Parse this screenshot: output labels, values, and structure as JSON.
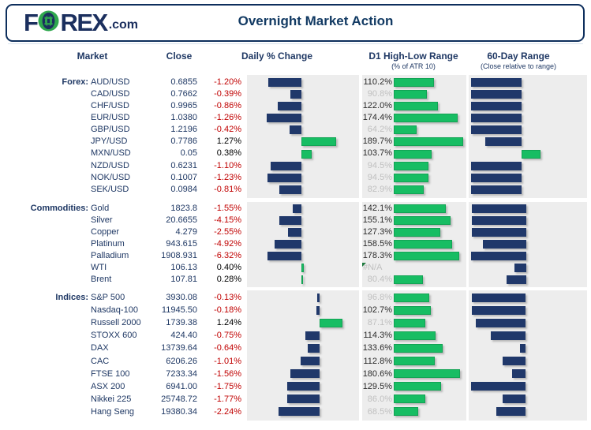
{
  "header": {
    "logo_f": "F",
    "logo_rex": "REX",
    "logo_suffix": ".com",
    "title": "Overnight Market Action"
  },
  "columns": {
    "market": "Market",
    "close": "Close",
    "daily": "Daily % Change",
    "d1_range": "D1 High-Low Range",
    "d1_range_sub": "(% of ATR 10)",
    "sixty_day": "60-Day Range",
    "sixty_day_sub": "(Close relative to range)"
  },
  "colors": {
    "navy_bar": "#20386a",
    "green_bar": "#17bd63",
    "negative_text": "#c00000",
    "positive_text": "#000000",
    "heading_text": "#1f3864",
    "dim_label": "#c0c0c0",
    "panel_bg": "#ededed"
  },
  "chart_data": {
    "type": "table",
    "title": "Overnight Market Action",
    "legend_note": "bars: navy = negative/below, green = positive; D1 range bars sized as % of ATR 10; 60-day bars show close position relative to range",
    "sections": [
      {
        "id": "forex",
        "label": "Forex:",
        "rows": [
          {
            "market": "AUD/USD",
            "close": "0.6855",
            "daily_pct": -1.2,
            "atr_pct": 110.2,
            "sixty_day": -0.427
          },
          {
            "market": "CAD/USD",
            "close": "0.7662",
            "daily_pct": -0.39,
            "atr_pct": 90.8,
            "sixty_day": -0.427
          },
          {
            "market": "CHF/USD",
            "close": "0.9965",
            "daily_pct": -0.86,
            "atr_pct": 122.0,
            "sixty_day": -0.427
          },
          {
            "market": "EUR/USD",
            "close": "1.0380",
            "daily_pct": -1.26,
            "atr_pct": 174.4,
            "sixty_day": -0.427
          },
          {
            "market": "GBP/USD",
            "close": "1.2196",
            "daily_pct": -0.42,
            "atr_pct": 64.2,
            "sixty_day": -0.427
          },
          {
            "market": "JPY/USD",
            "close": "0.7786",
            "daily_pct": 1.27,
            "atr_pct": 189.7,
            "sixty_day": -0.307
          },
          {
            "market": "MXN/USD",
            "close": "0.05",
            "daily_pct": 0.38,
            "atr_pct": 103.7,
            "sixty_day": 0.16
          },
          {
            "market": "NZD/USD",
            "close": "0.6231",
            "daily_pct": -1.1,
            "atr_pct": 94.5,
            "sixty_day": -0.427
          },
          {
            "market": "NOK/USD",
            "close": "0.1007",
            "daily_pct": -1.23,
            "atr_pct": 94.5,
            "sixty_day": -0.427
          },
          {
            "market": "SEK/USD",
            "close": "0.0984",
            "daily_pct": -0.81,
            "atr_pct": 82.9,
            "sixty_day": -0.427
          }
        ]
      },
      {
        "id": "commodities",
        "label": "Commodities:",
        "rows": [
          {
            "market": "Gold",
            "close": "1823.8",
            "daily_pct": -1.55,
            "atr_pct": 142.1,
            "sixty_day": -0.46
          },
          {
            "market": "Silver",
            "close": "20.6655",
            "daily_pct": -4.15,
            "atr_pct": 155.1,
            "sixty_day": -0.46
          },
          {
            "market": "Copper",
            "close": "4.279",
            "daily_pct": -2.55,
            "atr_pct": 127.3,
            "sixty_day": -0.46
          },
          {
            "market": "Platinum",
            "close": "943.615",
            "daily_pct": -4.92,
            "atr_pct": 158.5,
            "sixty_day": -0.363
          },
          {
            "market": "Palladium",
            "close": "1908.931",
            "daily_pct": -6.32,
            "atr_pct": 178.3,
            "sixty_day": -0.467
          },
          {
            "market": "WTI",
            "close": "106.13",
            "daily_pct": 0.4,
            "atr_pct": null,
            "atr_na_label": "#N/A",
            "atr_error_marker": true,
            "sixty_day": -0.1
          },
          {
            "market": "Brent",
            "close": "107.81",
            "daily_pct": 0.28,
            "atr_pct": 80.4,
            "sixty_day": -0.167
          }
        ]
      },
      {
        "id": "indices",
        "label": "Indices:",
        "rows": [
          {
            "market": "S&P 500",
            "close": "3930.08",
            "daily_pct": -0.13,
            "atr_pct": 96.8,
            "sixty_day": -0.455
          },
          {
            "market": "Nasdaq-100",
            "close": "11945.50",
            "daily_pct": -0.18,
            "atr_pct": 102.7,
            "sixty_day": -0.455
          },
          {
            "market": "Russell 2000",
            "close": "1739.38",
            "daily_pct": 1.24,
            "atr_pct": 87.1,
            "sixty_day": -0.418
          },
          {
            "market": "STOXX 600",
            "close": "424.40",
            "daily_pct": -0.75,
            "atr_pct": 114.3,
            "sixty_day": -0.291
          },
          {
            "market": "DAX",
            "close": "13739.64",
            "daily_pct": -0.64,
            "atr_pct": 133.6,
            "sixty_day": -0.045
          },
          {
            "market": "CAC",
            "close": "6206.26",
            "daily_pct": -1.01,
            "atr_pct": 112.8,
            "sixty_day": -0.191
          },
          {
            "market": "FTSE 100",
            "close": "7233.34",
            "daily_pct": -1.56,
            "atr_pct": 180.6,
            "sixty_day": -0.111
          },
          {
            "market": "ASX 200",
            "close": "6941.00",
            "daily_pct": -1.75,
            "atr_pct": 129.5,
            "sixty_day": -0.462
          },
          {
            "market": "Nikkei 225",
            "close": "25748.72",
            "daily_pct": -1.77,
            "atr_pct": 86.0,
            "sixty_day": -0.191
          },
          {
            "market": "Hang Seng",
            "close": "19380.34",
            "daily_pct": -2.24,
            "atr_pct": 68.5,
            "sixty_day": -0.245
          }
        ]
      }
    ]
  }
}
